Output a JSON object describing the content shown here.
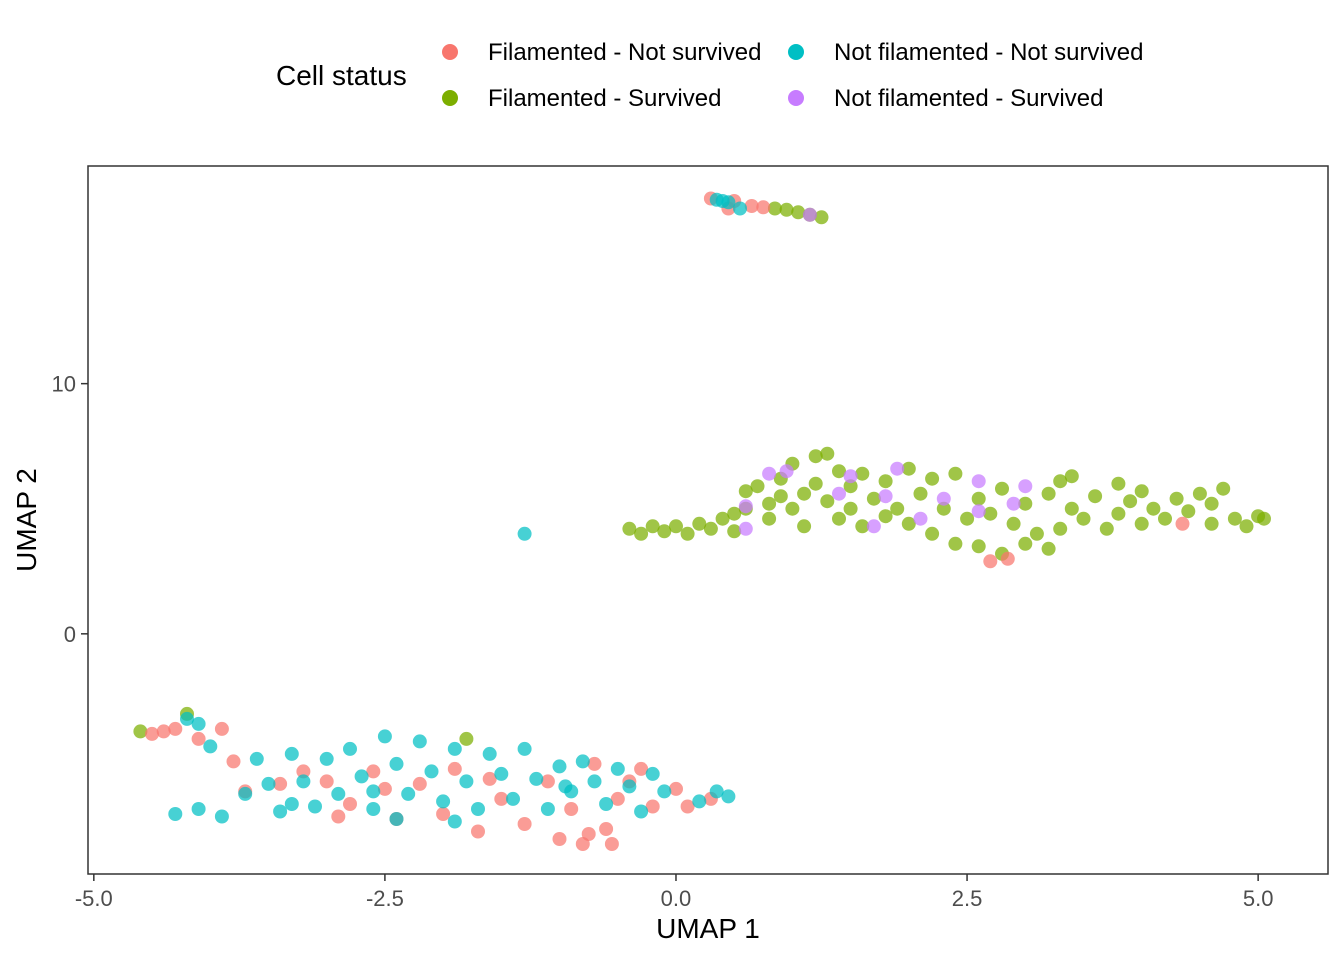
{
  "chart_data": {
    "type": "scatter",
    "title": "",
    "xlabel": "UMAP 1",
    "ylabel": "UMAP 2",
    "xlim": [
      -5.05,
      5.6
    ],
    "ylim": [
      -9.6,
      18.7
    ],
    "xticks": [
      -5.0,
      -2.5,
      0.0,
      2.5,
      5.0
    ],
    "xtick_labels": [
      "-5.0",
      "-2.5",
      "0.0",
      "2.5",
      "5.0"
    ],
    "yticks": [
      0,
      10
    ],
    "ytick_labels": [
      "0",
      "10"
    ],
    "grid": false,
    "legend": {
      "title": "Cell status",
      "placement": "top",
      "entries": [
        {
          "label": "Filamented - Not survived",
          "color": "#F8766D"
        },
        {
          "label": "Filamented - Survived",
          "color": "#7CAE00"
        },
        {
          "label": "Not filamented - Not survived",
          "color": "#00BFC4"
        },
        {
          "label": "Not filamented - Survived",
          "color": "#C77CFF"
        }
      ]
    },
    "series": [
      {
        "name": "Filamented - Survived",
        "color": "#7CAE00",
        "points": [
          [
            -0.4,
            4.2
          ],
          [
            -0.3,
            4.0
          ],
          [
            -0.2,
            4.3
          ],
          [
            -0.1,
            4.1
          ],
          [
            0.0,
            4.3
          ],
          [
            0.1,
            4.0
          ],
          [
            0.2,
            4.4
          ],
          [
            0.3,
            4.2
          ],
          [
            0.4,
            4.6
          ],
          [
            0.5,
            4.8
          ],
          [
            0.5,
            4.1
          ],
          [
            0.6,
            5.0
          ],
          [
            0.6,
            5.7
          ],
          [
            0.7,
            5.9
          ],
          [
            0.8,
            5.2
          ],
          [
            0.8,
            4.6
          ],
          [
            0.9,
            5.5
          ],
          [
            0.9,
            6.2
          ],
          [
            1.0,
            5.0
          ],
          [
            1.0,
            6.8
          ],
          [
            1.1,
            5.6
          ],
          [
            1.1,
            4.3
          ],
          [
            1.2,
            7.1
          ],
          [
            1.2,
            6.0
          ],
          [
            1.3,
            5.3
          ],
          [
            1.3,
            7.2
          ],
          [
            1.4,
            4.6
          ],
          [
            1.4,
            6.5
          ],
          [
            1.5,
            5.0
          ],
          [
            1.5,
            5.9
          ],
          [
            1.6,
            4.3
          ],
          [
            1.6,
            6.4
          ],
          [
            1.7,
            5.4
          ],
          [
            1.8,
            4.7
          ],
          [
            1.8,
            6.1
          ],
          [
            1.9,
            5.0
          ],
          [
            2.0,
            6.6
          ],
          [
            2.0,
            4.4
          ],
          [
            2.1,
            5.6
          ],
          [
            2.2,
            4.0
          ],
          [
            2.2,
            6.2
          ],
          [
            2.3,
            5.0
          ],
          [
            2.4,
            3.6
          ],
          [
            2.4,
            6.4
          ],
          [
            2.5,
            4.6
          ],
          [
            2.6,
            5.4
          ],
          [
            2.6,
            3.5
          ],
          [
            2.7,
            4.8
          ],
          [
            2.8,
            5.8
          ],
          [
            2.8,
            3.2
          ],
          [
            2.9,
            4.4
          ],
          [
            3.0,
            5.2
          ],
          [
            3.0,
            3.6
          ],
          [
            3.1,
            4.0
          ],
          [
            3.2,
            5.6
          ],
          [
            3.2,
            3.4
          ],
          [
            3.3,
            6.1
          ],
          [
            3.3,
            4.2
          ],
          [
            3.4,
            5.0
          ],
          [
            3.4,
            6.3
          ],
          [
            3.5,
            4.6
          ],
          [
            3.6,
            5.5
          ],
          [
            3.7,
            4.2
          ],
          [
            3.8,
            6.0
          ],
          [
            3.8,
            4.8
          ],
          [
            3.9,
            5.3
          ],
          [
            4.0,
            4.4
          ],
          [
            4.0,
            5.7
          ],
          [
            4.1,
            5.0
          ],
          [
            4.2,
            4.6
          ],
          [
            4.3,
            5.4
          ],
          [
            4.4,
            4.9
          ],
          [
            4.5,
            5.6
          ],
          [
            4.6,
            4.4
          ],
          [
            4.6,
            5.2
          ],
          [
            4.7,
            5.8
          ],
          [
            4.8,
            4.6
          ],
          [
            4.9,
            4.3
          ],
          [
            5.0,
            4.7
          ],
          [
            5.05,
            4.6
          ],
          [
            0.85,
            17.0
          ],
          [
            0.95,
            16.95
          ],
          [
            1.05,
            16.85
          ],
          [
            1.15,
            16.75
          ],
          [
            1.25,
            16.65
          ],
          [
            -4.6,
            -3.9
          ],
          [
            -4.2,
            -3.2
          ],
          [
            -1.8,
            -4.2
          ]
        ]
      },
      {
        "name": "Filamented - Not survived",
        "color": "#F8766D",
        "points": [
          [
            0.3,
            17.4
          ],
          [
            0.45,
            17.0
          ],
          [
            0.5,
            17.3
          ],
          [
            0.65,
            17.1
          ],
          [
            0.75,
            17.05
          ],
          [
            2.7,
            2.9
          ],
          [
            2.85,
            3.0
          ],
          [
            4.35,
            4.4
          ],
          [
            -4.5,
            -4.0
          ],
          [
            -4.4,
            -3.9
          ],
          [
            -4.3,
            -3.8
          ],
          [
            -4.1,
            -4.2
          ],
          [
            -3.9,
            -3.8
          ],
          [
            -3.8,
            -5.1
          ],
          [
            -3.7,
            -6.3
          ],
          [
            -3.2,
            -5.5
          ],
          [
            -3.0,
            -5.9
          ],
          [
            -2.8,
            -6.8
          ],
          [
            -2.6,
            -5.5
          ],
          [
            -2.5,
            -6.2
          ],
          [
            -2.4,
            -7.4
          ],
          [
            -2.2,
            -6.0
          ],
          [
            -2.0,
            -7.2
          ],
          [
            -1.9,
            -5.4
          ],
          [
            -1.7,
            -7.9
          ],
          [
            -1.5,
            -6.6
          ],
          [
            -1.3,
            -7.6
          ],
          [
            -1.1,
            -5.9
          ],
          [
            -1.0,
            -8.2
          ],
          [
            -0.9,
            -7.0
          ],
          [
            -0.8,
            -8.4
          ],
          [
            -0.7,
            -5.2
          ],
          [
            -0.6,
            -7.8
          ],
          [
            -0.55,
            -8.4
          ],
          [
            -0.5,
            -6.6
          ],
          [
            -0.3,
            -5.4
          ],
          [
            -0.2,
            -6.9
          ],
          [
            0.0,
            -6.2
          ],
          [
            0.1,
            -6.9
          ],
          [
            0.3,
            -6.6
          ],
          [
            -2.9,
            -7.3
          ],
          [
            -3.4,
            -6.0
          ],
          [
            -1.6,
            -5.8
          ],
          [
            -0.75,
            -8.0
          ],
          [
            -0.4,
            -5.9
          ]
        ]
      },
      {
        "name": "Not filamented - Not survived",
        "color": "#00BFC4",
        "points": [
          [
            0.35,
            17.35
          ],
          [
            0.4,
            17.3
          ],
          [
            0.45,
            17.25
          ],
          [
            0.55,
            17.0
          ],
          [
            -1.3,
            4.0
          ],
          [
            -4.2,
            -3.4
          ],
          [
            -4.1,
            -3.6
          ],
          [
            -4.0,
            -4.5
          ],
          [
            -4.3,
            -7.2
          ],
          [
            -4.1,
            -7.0
          ],
          [
            -3.9,
            -7.3
          ],
          [
            -3.7,
            -6.4
          ],
          [
            -3.6,
            -5.0
          ],
          [
            -3.5,
            -6.0
          ],
          [
            -3.4,
            -7.1
          ],
          [
            -3.3,
            -4.8
          ],
          [
            -3.2,
            -5.9
          ],
          [
            -3.1,
            -6.9
          ],
          [
            -3.0,
            -5.0
          ],
          [
            -2.9,
            -6.4
          ],
          [
            -2.8,
            -4.6
          ],
          [
            -2.7,
            -5.7
          ],
          [
            -2.6,
            -7.0
          ],
          [
            -2.5,
            -4.1
          ],
          [
            -2.4,
            -5.2
          ],
          [
            -2.3,
            -6.4
          ],
          [
            -2.2,
            -4.3
          ],
          [
            -2.1,
            -5.5
          ],
          [
            -2.0,
            -6.7
          ],
          [
            -1.9,
            -4.6
          ],
          [
            -1.8,
            -5.9
          ],
          [
            -1.7,
            -7.0
          ],
          [
            -1.6,
            -4.8
          ],
          [
            -1.5,
            -5.6
          ],
          [
            -1.4,
            -6.6
          ],
          [
            -1.3,
            -4.6
          ],
          [
            -1.2,
            -5.8
          ],
          [
            -1.1,
            -7.0
          ],
          [
            -1.0,
            -5.3
          ],
          [
            -0.9,
            -6.3
          ],
          [
            -0.8,
            -5.1
          ],
          [
            -0.7,
            -5.9
          ],
          [
            -0.6,
            -6.8
          ],
          [
            -0.5,
            -5.4
          ],
          [
            -0.4,
            -6.1
          ],
          [
            -0.3,
            -7.1
          ],
          [
            -0.2,
            -5.6
          ],
          [
            -0.1,
            -6.3
          ],
          [
            0.2,
            -6.7
          ],
          [
            0.35,
            -6.3
          ],
          [
            0.45,
            -6.5
          ],
          [
            -3.3,
            -6.8
          ],
          [
            -2.4,
            -7.4
          ],
          [
            -1.9,
            -7.5
          ],
          [
            -0.95,
            -6.1
          ],
          [
            -2.6,
            -6.3
          ]
        ]
      },
      {
        "name": "Not filamented - Survived",
        "color": "#C77CFF",
        "points": [
          [
            1.15,
            16.75
          ],
          [
            0.6,
            5.1
          ],
          [
            0.6,
            4.2
          ],
          [
            0.8,
            6.4
          ],
          [
            0.95,
            6.5
          ],
          [
            1.4,
            5.6
          ],
          [
            1.5,
            6.3
          ],
          [
            1.7,
            4.3
          ],
          [
            1.8,
            5.5
          ],
          [
            1.9,
            6.6
          ],
          [
            2.1,
            4.6
          ],
          [
            2.3,
            5.4
          ],
          [
            2.6,
            4.9
          ],
          [
            2.6,
            6.1
          ],
          [
            2.9,
            5.2
          ],
          [
            3.0,
            5.9
          ]
        ]
      }
    ]
  }
}
